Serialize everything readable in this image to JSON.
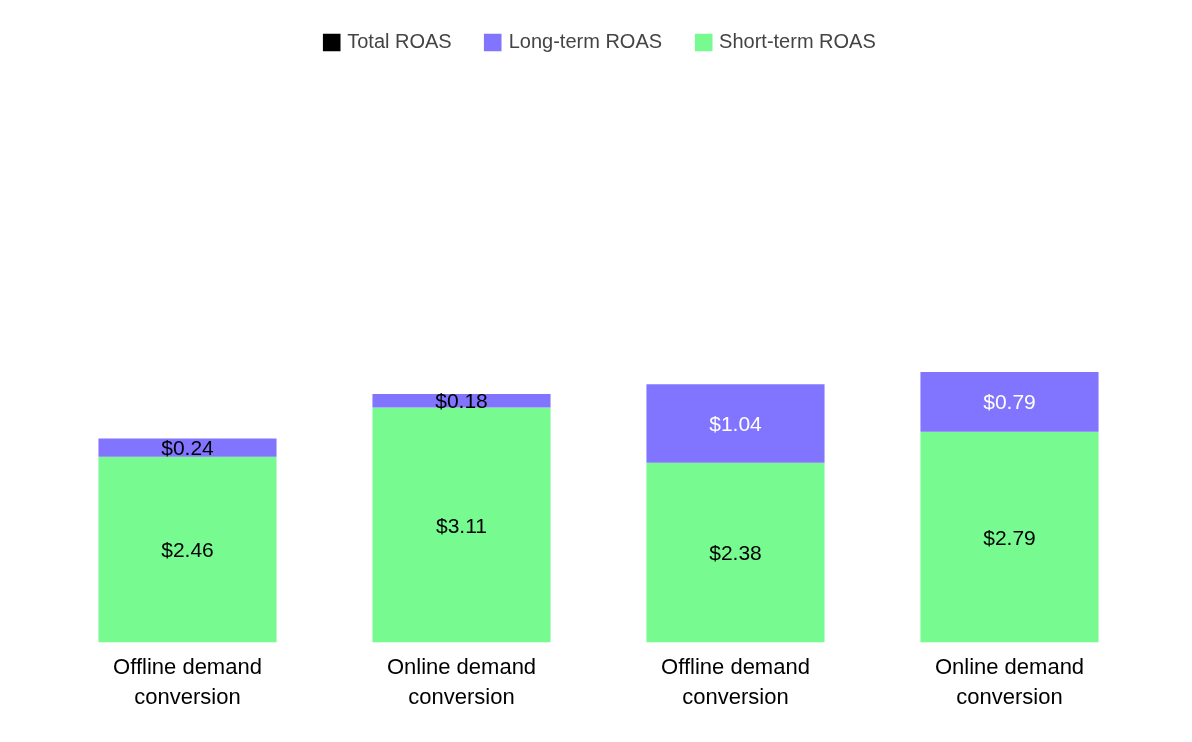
{
  "chart_data": {
    "type": "bar",
    "stacked": true,
    "relative": false,
    "categories": [
      "Offline demand conversion",
      "Online demand conversion",
      "Offline demand conversion",
      "Online demand conversion"
    ],
    "series": [
      {
        "name": "Total ROAS",
        "color": "#000000",
        "values": [
          null,
          null,
          null,
          null
        ]
      },
      {
        "name": "Short-term ROAS",
        "color": "#77fb91",
        "values": [
          2.46,
          3.11,
          2.38,
          2.79
        ],
        "value_labels": [
          "$2.46",
          "$3.11",
          "$2.38",
          "$2.79"
        ]
      },
      {
        "name": "Long-term ROAS",
        "color": "#8174ff",
        "values": [
          0.24,
          0.18,
          1.04,
          0.79
        ],
        "value_labels": [
          "$0.24",
          "$0.18",
          "$1.04",
          "$0.79"
        ]
      }
    ],
    "legend": "top",
    "grid": false
  }
}
